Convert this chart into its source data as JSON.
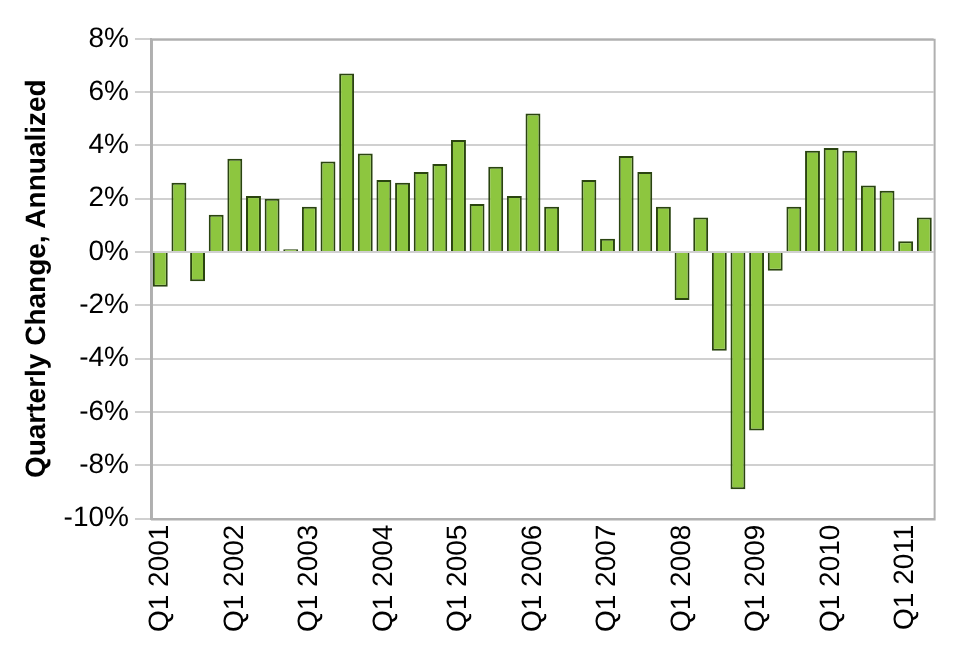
{
  "chart_data": {
    "type": "bar",
    "ylabel": "Quarterly Change, Annualized",
    "categories": [
      "Q1 2001",
      null,
      null,
      null,
      "Q1 2002",
      null,
      null,
      null,
      "Q1 2003",
      null,
      null,
      null,
      "Q1 2004",
      null,
      null,
      null,
      "Q1 2005",
      null,
      null,
      null,
      "Q1 2006",
      null,
      null,
      null,
      "Q1 2007",
      null,
      null,
      null,
      "Q1 2008",
      null,
      null,
      null,
      "Q1 2009",
      null,
      null,
      null,
      "Q1 2010",
      null,
      null,
      null,
      "Q1 2011",
      null
    ],
    "values": [
      -1.3,
      2.6,
      -1.1,
      1.4,
      3.5,
      2.1,
      2.0,
      0.1,
      1.7,
      3.4,
      6.7,
      3.7,
      2.7,
      2.6,
      3.0,
      3.3,
      4.2,
      1.8,
      3.2,
      2.1,
      5.2,
      1.7,
      null,
      2.7,
      0.5,
      3.6,
      3.0,
      1.7,
      -1.8,
      1.3,
      -3.7,
      -8.9,
      -6.7,
      -0.7,
      1.7,
      3.8,
      3.9,
      3.8,
      2.5,
      2.3,
      0.4,
      1.3
    ],
    "color": "#8dc63f",
    "ylim": [
      -10,
      8
    ],
    "yticks": [
      {
        "value": -10,
        "label": "-10%"
      },
      {
        "value": -8,
        "label": "-8%"
      },
      {
        "value": -6,
        "label": "-6%"
      },
      {
        "value": -4,
        "label": "-4%"
      },
      {
        "value": -2,
        "label": "-2%"
      },
      {
        "value": 0,
        "label": "0%"
      },
      {
        "value": 2,
        "label": "2%"
      },
      {
        "value": 4,
        "label": "4%"
      },
      {
        "value": 6,
        "label": "6%"
      },
      {
        "value": 8,
        "label": "8%"
      }
    ],
    "grid": "y",
    "legend": false
  }
}
